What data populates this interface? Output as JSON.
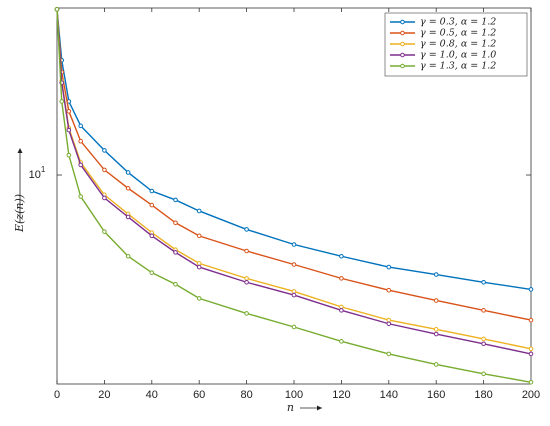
{
  "chart_data": {
    "type": "line",
    "log_y": true,
    "xlabel": "n",
    "ylabel": "E(z(n))",
    "x": [
      0,
      2,
      5,
      10,
      20,
      30,
      40,
      50,
      60,
      80,
      100,
      120,
      140,
      160,
      180,
      200
    ],
    "series": [
      {
        "name": "γ = 0.3, α = 1.2",
        "color": "#0072bd",
        "values": [
          19,
          15.6,
          13.3,
          12.1,
          11.0,
          10.1,
          9.4,
          9.08,
          8.7,
          8.1,
          7.64,
          7.3,
          7.0,
          6.8,
          6.6,
          6.42
        ]
      },
      {
        "name": "γ = 0.5, α = 1.2",
        "color": "#d95319",
        "values": [
          19,
          14.9,
          12.8,
          11.4,
          10.2,
          9.5,
          8.9,
          8.31,
          7.9,
          7.45,
          7.07,
          6.7,
          6.4,
          6.15,
          5.92,
          5.7
        ]
      },
      {
        "name": "γ = 0.8, α = 1.2",
        "color": "#edb120",
        "values": [
          19,
          14.4,
          12.0,
          10.5,
          9.26,
          8.6,
          8.0,
          7.49,
          7.1,
          6.7,
          6.37,
          6.0,
          5.7,
          5.5,
          5.3,
          5.1
        ]
      },
      {
        "name": "γ = 1.0, α = 1.0",
        "color": "#7e2f8e",
        "values": [
          19,
          14.3,
          11.9,
          10.4,
          9.15,
          8.5,
          7.9,
          7.41,
          7.0,
          6.6,
          6.28,
          5.92,
          5.62,
          5.4,
          5.2,
          5.0
        ]
      },
      {
        "name": "γ = 1.3, α = 1.2",
        "color": "#77ac30",
        "values": [
          19,
          13.3,
          10.8,
          9.2,
          8.03,
          7.3,
          6.85,
          6.55,
          6.2,
          5.85,
          5.55,
          5.25,
          5.0,
          4.8,
          4.63,
          4.48
        ]
      }
    ],
    "xlim": [
      0,
      200
    ],
    "xticks": [
      0,
      20,
      40,
      60,
      80,
      100,
      120,
      140,
      160,
      180,
      200
    ],
    "ylim": [
      4.45,
      19.1
    ],
    "yticks": [
      {
        "value": 10,
        "label": "10",
        "exponent": "1"
      }
    ],
    "legend": "upper right"
  }
}
